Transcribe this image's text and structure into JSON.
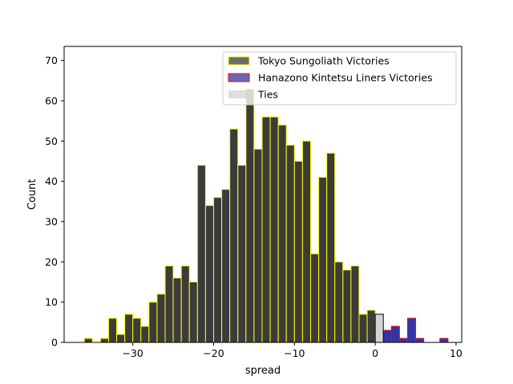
{
  "chart_data": {
    "type": "bar",
    "xlabel": "spread",
    "ylabel": "Count",
    "xlim": [
      -38.5,
      10.7
    ],
    "ylim": [
      0,
      73.5
    ],
    "xticks": [
      -30,
      -20,
      -10,
      0,
      10
    ],
    "xtick_labels": [
      "−30",
      "−20",
      "−10",
      "0",
      "10"
    ],
    "yticks": [
      0,
      10,
      20,
      30,
      40,
      50,
      60,
      70
    ],
    "ytick_labels": [
      "0",
      "10",
      "20",
      "30",
      "40",
      "50",
      "60",
      "70"
    ],
    "bin_width": 1,
    "legend_position": "top-right",
    "series": [
      {
        "name": "Tokyo Sungoliath Victories",
        "fill": "#3b3b3b",
        "edge": "#ffff00",
        "x": [
          -36,
          -34,
          -33,
          -32,
          -31,
          -30,
          -29,
          -28,
          -27,
          -26,
          -25,
          -24,
          -23,
          -22,
          -21,
          -20,
          -19,
          -18,
          -17,
          -16,
          -15,
          -14,
          -13,
          -12,
          -11,
          -10,
          -9,
          -8,
          -7,
          -6,
          -5,
          -4,
          -3,
          -2,
          -1
        ],
        "values": [
          1,
          1,
          6,
          2,
          7,
          6,
          4,
          10,
          12,
          19,
          16,
          19,
          15,
          44,
          34,
          36,
          38,
          53,
          44,
          63,
          48,
          56,
          56,
          54,
          49,
          45,
          50,
          22,
          41,
          47,
          20,
          18,
          19,
          7,
          8
        ]
      },
      {
        "name": "Hanazono Kintetsu Liners Victories",
        "fill": "#3434a8",
        "edge": "#ff0000",
        "x": [
          1,
          2,
          3,
          4,
          5,
          6,
          7,
          8
        ],
        "values": [
          3,
          4,
          1,
          6,
          1,
          0,
          0,
          1
        ]
      },
      {
        "name": "Ties",
        "fill": "#d3d3d3",
        "edge": "#000000",
        "x": [
          0
        ],
        "values": [
          7
        ]
      }
    ]
  }
}
